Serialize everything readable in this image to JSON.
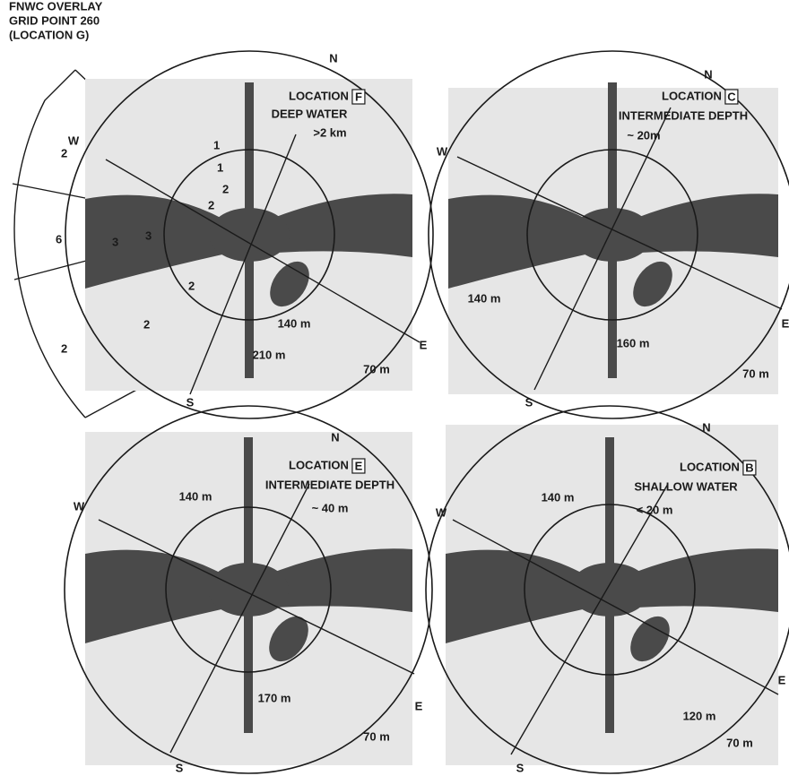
{
  "overlay": {
    "title": [
      "FNWC OVERLAY",
      "GRID POINT 260",
      "(LOCATION G)"
    ],
    "sectors": [
      "2",
      "6",
      "2"
    ],
    "grid_labels": [
      "1",
      "1",
      "2",
      "2",
      "3",
      "3",
      "2",
      "2"
    ]
  },
  "panels": [
    {
      "location": "LOCATION",
      "letter": "F",
      "description": "DEEP WATER",
      "depth": ">2 km",
      "compass": [
        "N",
        "W",
        "S",
        "E"
      ],
      "ranges": [
        "140 m",
        "210 m",
        "70 m"
      ]
    },
    {
      "location": "LOCATION",
      "letter": "C",
      "description": "INTERMEDIATE DEPTH",
      "depth": "~ 20m",
      "compass": [
        "N",
        "W",
        "S",
        "E"
      ],
      "ranges": [
        "140 m",
        "160 m",
        "70 m"
      ]
    },
    {
      "location": "LOCATION",
      "letter": "E",
      "description": "INTERMEDIATE DEPTH",
      "depth": "~ 40 m",
      "compass": [
        "N",
        "W",
        "S",
        "E"
      ],
      "ranges": [
        "140 m",
        "170 m",
        "70 m"
      ]
    },
    {
      "location": "LOCATION",
      "letter": "B",
      "description": "SHALLOW WATER",
      "depth": "< 20 m",
      "compass": [
        "N",
        "W",
        "S",
        "E"
      ],
      "ranges": [
        "140 m",
        "120 m",
        "70 m"
      ]
    }
  ]
}
